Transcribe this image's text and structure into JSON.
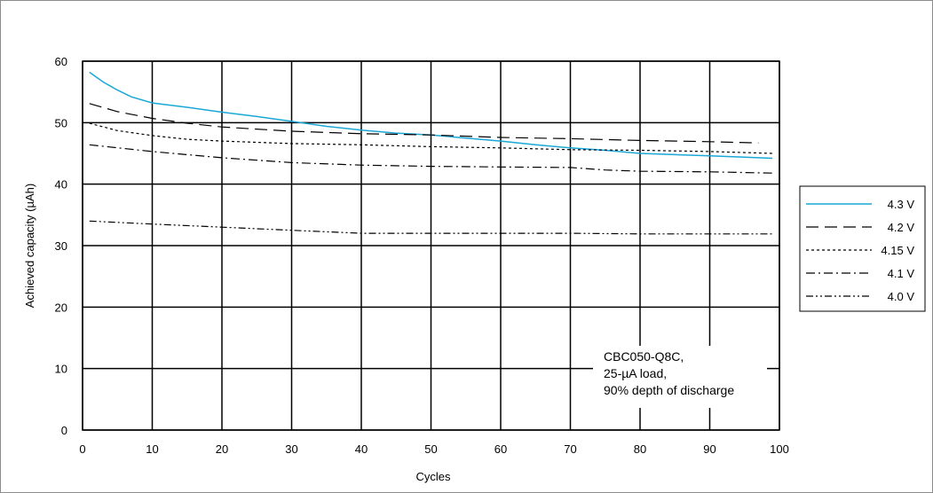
{
  "chart_data": {
    "type": "line",
    "xlabel": "Cycles",
    "ylabel": "Achieved capacity (µAh)",
    "xlim": [
      0,
      100
    ],
    "ylim": [
      0,
      60
    ],
    "xticks": [
      0,
      10,
      20,
      30,
      40,
      50,
      60,
      70,
      80,
      90,
      100
    ],
    "yticks": [
      0,
      10,
      20,
      30,
      40,
      50,
      60
    ],
    "grid": true,
    "legend_placement": "right",
    "annotation": [
      "CBC050-Q8C,",
      "25-µA load,",
      "90% depth of discharge"
    ],
    "series": [
      {
        "name": "4.3 V",
        "color": "#1aa7d6",
        "dash": "solid",
        "x": [
          1,
          3,
          5,
          7,
          10,
          15,
          20,
          25,
          30,
          35,
          40,
          45,
          50,
          55,
          60,
          65,
          70,
          75,
          80,
          85,
          90,
          95,
          99
        ],
        "y": [
          58.2,
          56.6,
          55.3,
          54.2,
          53.2,
          52.5,
          51.7,
          51.0,
          50.2,
          49.4,
          48.8,
          48.3,
          48.0,
          47.5,
          47.0,
          46.4,
          45.9,
          45.5,
          45.0,
          44.8,
          44.6,
          44.4,
          44.2
        ]
      },
      {
        "name": "4.2 V",
        "color": "#000000",
        "dash": "long",
        "x": [
          1,
          5,
          10,
          15,
          20,
          30,
          40,
          50,
          60,
          70,
          80,
          90,
          97
        ],
        "y": [
          53.1,
          51.8,
          50.7,
          49.9,
          49.3,
          48.6,
          48.2,
          48.0,
          47.6,
          47.4,
          47.1,
          46.9,
          46.7
        ]
      },
      {
        "name": "4.15 V",
        "color": "#000000",
        "dash": "dotted",
        "x": [
          1,
          5,
          10,
          15,
          20,
          30,
          40,
          50,
          60,
          70,
          80,
          90,
          99
        ],
        "y": [
          49.9,
          48.7,
          47.9,
          47.3,
          47.0,
          46.6,
          46.4,
          46.1,
          45.9,
          45.6,
          45.5,
          45.3,
          45.0
        ]
      },
      {
        "name": "4.1 V",
        "color": "#000000",
        "dash": "dashdot",
        "x": [
          1,
          10,
          20,
          30,
          40,
          50,
          60,
          70,
          75,
          80,
          90,
          99
        ],
        "y": [
          46.4,
          45.3,
          44.3,
          43.5,
          43.1,
          42.9,
          42.8,
          42.7,
          42.3,
          42.1,
          42.0,
          41.8
        ]
      },
      {
        "name": "4.0 V",
        "color": "#000000",
        "dash": "dashdotdot",
        "x": [
          1,
          10,
          20,
          30,
          40,
          50,
          60,
          70,
          80,
          90,
          99
        ],
        "y": [
          34.0,
          33.5,
          33.0,
          32.5,
          32.0,
          32.0,
          32.0,
          32.0,
          31.9,
          31.9,
          31.9
        ]
      }
    ]
  }
}
